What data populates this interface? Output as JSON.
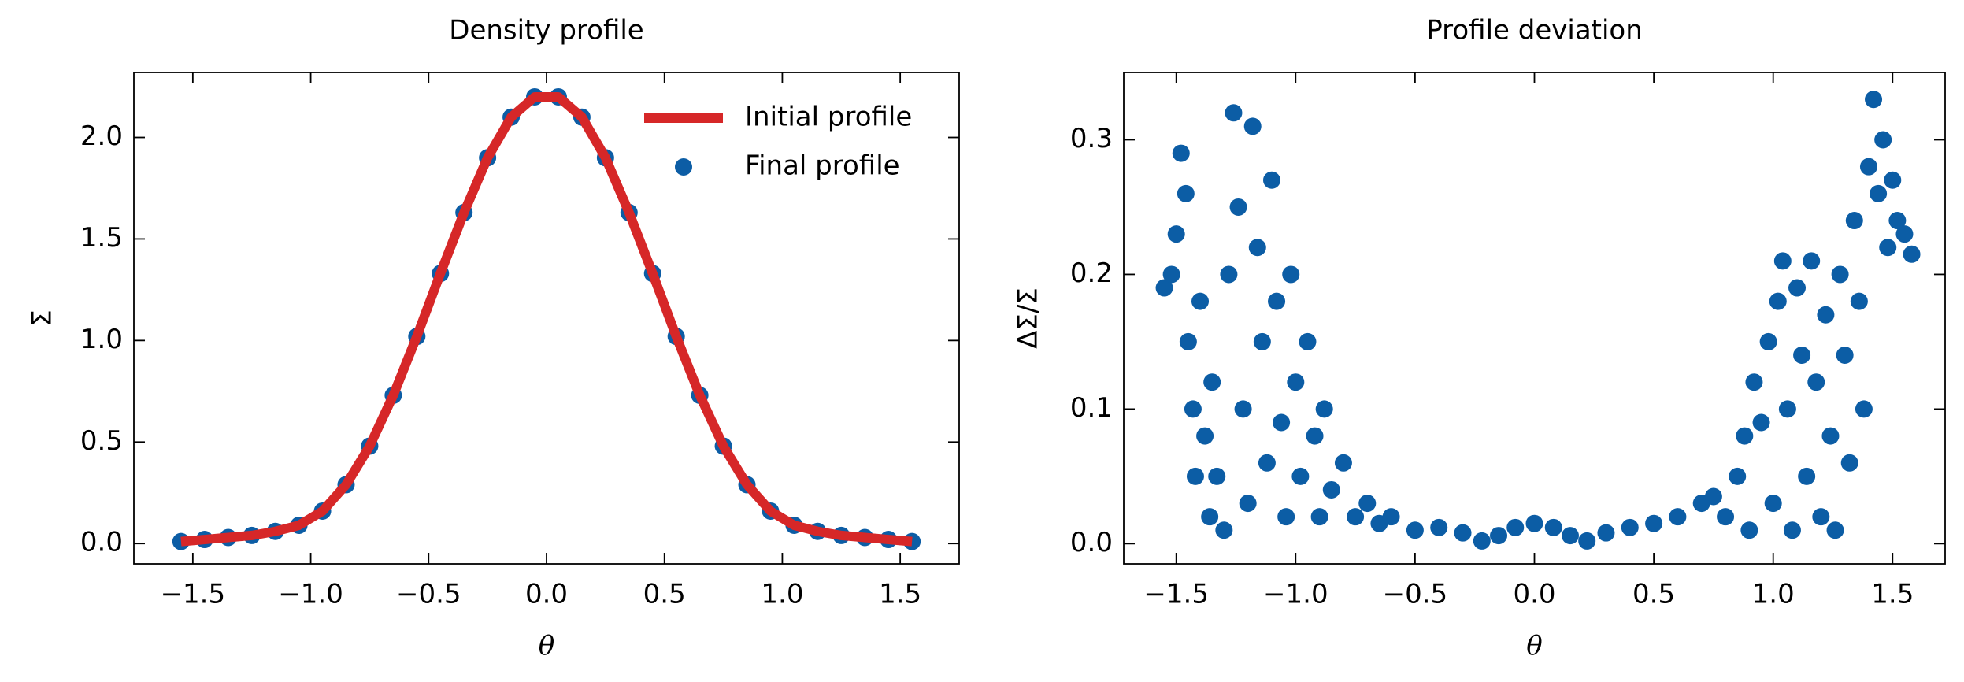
{
  "chart_data": [
    {
      "type": "line",
      "title": "Density profile",
      "xlabel": "θ",
      "ylabel": "Σ",
      "x": [
        -1.55,
        -1.45,
        -1.35,
        -1.25,
        -1.15,
        -1.05,
        -0.95,
        -0.85,
        -0.75,
        -0.65,
        -0.55,
        -0.45,
        -0.35,
        -0.25,
        -0.15,
        -0.05,
        0.05,
        0.15,
        0.25,
        0.35,
        0.45,
        0.55,
        0.65,
        0.75,
        0.85,
        0.95,
        1.05,
        1.15,
        1.25,
        1.35,
        1.45,
        1.55
      ],
      "series": [
        {
          "name": "Initial profile",
          "type": "line",
          "color": "#d62728",
          "values": [
            0.01,
            0.02,
            0.03,
            0.04,
            0.06,
            0.09,
            0.16,
            0.29,
            0.48,
            0.73,
            1.02,
            1.33,
            1.63,
            1.9,
            2.1,
            2.2,
            2.2,
            2.1,
            1.9,
            1.63,
            1.33,
            1.02,
            0.73,
            0.48,
            0.29,
            0.16,
            0.09,
            0.06,
            0.04,
            0.03,
            0.02,
            0.01
          ]
        },
        {
          "name": "Final profile",
          "type": "scatter",
          "color": "#0c5da5",
          "values": [
            0.01,
            0.02,
            0.03,
            0.04,
            0.06,
            0.09,
            0.16,
            0.29,
            0.48,
            0.73,
            1.02,
            1.33,
            1.63,
            1.9,
            2.1,
            2.2,
            2.2,
            2.1,
            1.9,
            1.63,
            1.33,
            1.02,
            0.73,
            0.48,
            0.29,
            0.16,
            0.09,
            0.06,
            0.04,
            0.03,
            0.02,
            0.01
          ]
        }
      ],
      "xlim": [
        -1.75,
        1.75
      ],
      "xticks": [
        {
          "value": -1.5,
          "label": "−1.5"
        },
        {
          "value": -1.0,
          "label": "−1.0"
        },
        {
          "value": -0.5,
          "label": "−0.5"
        },
        {
          "value": 0,
          "label": "0.0"
        },
        0.5,
        {
          "value": 1.0,
          "label": "1.0"
        },
        1.5
      ],
      "ylim": [
        -0.1,
        2.32
      ],
      "yticks": [
        {
          "value": 0,
          "label": "0.0"
        },
        0.5,
        {
          "value": 1.0,
          "label": "1.0"
        },
        1.5,
        {
          "value": 2.0,
          "label": "2.0"
        }
      ],
      "legend": "upper right"
    },
    {
      "type": "scatter",
      "title": "Profile deviation",
      "xlabel": "θ",
      "ylabel": "ΔΣ/Σ",
      "x": [
        -1.55,
        -1.52,
        -1.5,
        -1.48,
        -1.46,
        -1.45,
        -1.43,
        -1.42,
        -1.4,
        -1.38,
        -1.36,
        -1.35,
        -1.33,
        -1.3,
        -1.28,
        -1.26,
        -1.24,
        -1.22,
        -1.2,
        -1.18,
        -1.16,
        -1.14,
        -1.12,
        -1.1,
        -1.08,
        -1.06,
        -1.04,
        -1.02,
        -1.0,
        -0.98,
        -0.95,
        -0.92,
        -0.9,
        -0.88,
        -0.85,
        -0.8,
        -0.75,
        -0.7,
        -0.65,
        -0.6,
        -0.5,
        -0.4,
        -0.3,
        -0.22,
        -0.15,
        -0.08,
        0.0,
        0.08,
        0.15,
        0.22,
        0.3,
        0.4,
        0.5,
        0.6,
        0.7,
        0.75,
        0.8,
        0.85,
        0.88,
        0.9,
        0.92,
        0.95,
        0.98,
        1.0,
        1.02,
        1.04,
        1.06,
        1.08,
        1.1,
        1.12,
        1.14,
        1.16,
        1.18,
        1.2,
        1.22,
        1.24,
        1.26,
        1.28,
        1.3,
        1.32,
        1.34,
        1.36,
        1.38,
        1.4,
        1.42,
        1.44,
        1.46,
        1.48,
        1.5,
        1.52,
        1.55,
        1.58
      ],
      "series": [
        {
          "color": "#0c5da5",
          "values": [
            0.19,
            0.2,
            0.23,
            0.29,
            0.26,
            0.15,
            0.1,
            0.05,
            0.18,
            0.08,
            0.02,
            0.12,
            0.05,
            0.01,
            0.2,
            0.32,
            0.25,
            0.1,
            0.03,
            0.31,
            0.22,
            0.15,
            0.06,
            0.27,
            0.18,
            0.09,
            0.02,
            0.2,
            0.12,
            0.05,
            0.15,
            0.08,
            0.02,
            0.1,
            0.04,
            0.06,
            0.02,
            0.03,
            0.015,
            0.02,
            0.01,
            0.012,
            0.008,
            0.002,
            0.006,
            0.012,
            0.015,
            0.012,
            0.006,
            0.002,
            0.008,
            0.012,
            0.015,
            0.02,
            0.03,
            0.035,
            0.02,
            0.05,
            0.08,
            0.01,
            0.12,
            0.09,
            0.15,
            0.03,
            0.18,
            0.21,
            0.1,
            0.01,
            0.19,
            0.14,
            0.05,
            0.21,
            0.12,
            0.02,
            0.17,
            0.08,
            0.01,
            0.2,
            0.14,
            0.06,
            0.24,
            0.18,
            0.1,
            0.28,
            0.33,
            0.26,
            0.3,
            0.22,
            0.27,
            0.24,
            0.23,
            0.215
          ]
        }
      ],
      "xlim": [
        -1.72,
        1.72
      ],
      "xticks": [
        {
          "value": -1.5,
          "label": "−1.5"
        },
        {
          "value": -1.0,
          "label": "−1.0"
        },
        {
          "value": -0.5,
          "label": "−0.5"
        },
        {
          "value": 0,
          "label": "0.0"
        },
        0.5,
        {
          "value": 1.0,
          "label": "1.0"
        },
        1.5
      ],
      "ylim": [
        -0.015,
        0.35
      ],
      "yticks": [
        {
          "value": 0,
          "label": "0.0"
        },
        0.1,
        0.2,
        0.3
      ]
    }
  ]
}
